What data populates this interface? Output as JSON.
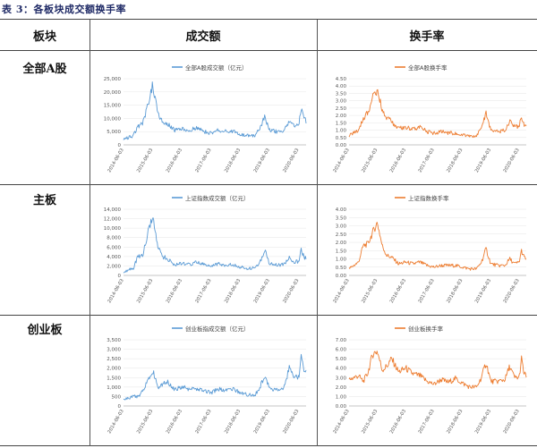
{
  "caption": "表 3：各板块成交额换手率",
  "headers": {
    "board": "板块",
    "turnover_amount": "成交额",
    "turnover_rate": "换手率"
  },
  "rows": [
    {
      "label": "全部A股",
      "amount_chart": {
        "type": "line",
        "legend": "全部A股成交额（亿元）",
        "color": "#5b9bd5",
        "yticks": [
          "25,000",
          "20,000",
          "15,000",
          "10,000",
          "5,000",
          "0"
        ],
        "ylim": [
          0,
          25000
        ],
        "xticks": [
          "2014-06-03",
          "2015-06-03",
          "2016-06-03",
          "2017-06-03",
          "2018-06-03",
          "2019-06-03",
          "2020-06-03"
        ],
        "x": [
          "2014-06",
          "2014-10",
          "2014-12",
          "2015-02",
          "2015-04",
          "2015-06",
          "2015-08",
          "2015-10",
          "2015-12",
          "2016-03",
          "2016-06",
          "2016-09",
          "2016-12",
          "2017-03",
          "2017-06",
          "2017-09",
          "2017-12",
          "2018-03",
          "2018-06",
          "2018-09",
          "2018-12",
          "2019-02",
          "2019-04",
          "2019-06",
          "2019-09",
          "2019-12",
          "2020-02",
          "2020-04",
          "2020-06",
          "2020-07",
          "2020-08",
          "2020-09"
        ],
        "values": [
          2000,
          3500,
          7000,
          8500,
          15000,
          23000,
          12000,
          9000,
          8000,
          5500,
          6000,
          5500,
          6500,
          5000,
          4500,
          5500,
          5000,
          5000,
          4000,
          3500,
          3500,
          6000,
          11000,
          5500,
          5000,
          5500,
          9000,
          7000,
          8000,
          14000,
          10000,
          9000
        ]
      },
      "rate_chart": {
        "type": "line",
        "legend": "全部A股换手率",
        "color": "#ed7d31",
        "yticks": [
          "4.50",
          "4.00",
          "3.50",
          "3.00",
          "2.50",
          "2.00",
          "1.50",
          "1.00",
          "0.50",
          "0.00"
        ],
        "ylim": [
          0,
          4.5
        ],
        "xticks": [
          "2014-06-03",
          "2015-06-03",
          "2016-06-03",
          "2017-06-03",
          "2018-06-03",
          "2019-06-03",
          "2020-06-03"
        ],
        "x": [
          "2014-06",
          "2014-10",
          "2014-12",
          "2015-02",
          "2015-04",
          "2015-06",
          "2015-08",
          "2015-10",
          "2015-12",
          "2016-03",
          "2016-06",
          "2016-09",
          "2016-12",
          "2017-03",
          "2017-06",
          "2017-09",
          "2017-12",
          "2018-03",
          "2018-06",
          "2018-09",
          "2018-12",
          "2019-02",
          "2019-04",
          "2019-06",
          "2019-09",
          "2019-12",
          "2020-02",
          "2020-04",
          "2020-06",
          "2020-07",
          "2020-08",
          "2020-09"
        ],
        "values": [
          0.6,
          1.0,
          1.8,
          2.2,
          3.2,
          3.8,
          2.4,
          1.8,
          1.6,
          1.1,
          1.2,
          1.1,
          1.2,
          0.9,
          0.8,
          0.9,
          0.8,
          0.8,
          0.7,
          0.6,
          0.6,
          1.1,
          2.2,
          1.0,
          0.9,
          1.0,
          1.6,
          1.2,
          1.3,
          1.9,
          1.4,
          1.3
        ]
      }
    },
    {
      "label": "主板",
      "amount_chart": {
        "type": "line",
        "legend": "上证指数成交额（亿元）",
        "color": "#5b9bd5",
        "yticks": [
          "14,000",
          "12,000",
          "10,000",
          "8,000",
          "6,000",
          "4,000",
          "2,000",
          "0"
        ],
        "ylim": [
          0,
          14000
        ],
        "xticks": [
          "2014-06-03",
          "2015-06-03",
          "2016-06-03",
          "2017-06-03",
          "2018-06-03",
          "2019-06-03",
          "2020-06-03"
        ],
        "x": [
          "2014-06",
          "2014-10",
          "2014-12",
          "2015-02",
          "2015-04",
          "2015-06",
          "2015-08",
          "2015-10",
          "2015-12",
          "2016-03",
          "2016-06",
          "2016-09",
          "2016-12",
          "2017-03",
          "2017-06",
          "2017-09",
          "2017-12",
          "2018-03",
          "2018-06",
          "2018-09",
          "2018-12",
          "2019-02",
          "2019-04",
          "2019-06",
          "2019-09",
          "2019-12",
          "2020-02",
          "2020-04",
          "2020-06",
          "2020-07",
          "2020-08",
          "2020-09"
        ],
        "values": [
          800,
          1500,
          4000,
          4500,
          9000,
          13000,
          6000,
          4000,
          3500,
          2200,
          2500,
          2300,
          2800,
          2300,
          2000,
          2500,
          2200,
          2200,
          1800,
          1500,
          1500,
          2800,
          5500,
          2500,
          2200,
          2300,
          3800,
          2800,
          3000,
          5500,
          4000,
          3500
        ]
      },
      "rate_chart": {
        "type": "line",
        "legend": "上证指数换手率",
        "color": "#ed7d31",
        "yticks": [
          "4.00",
          "3.50",
          "3.00",
          "2.50",
          "2.00",
          "1.50",
          "1.00",
          "0.50",
          "0.00"
        ],
        "ylim": [
          0,
          4.0
        ],
        "xticks": [
          "2014-06-03",
          "2015-06-03",
          "2016-06-03",
          "2017-06-03",
          "2018-06-03",
          "2019-06-03",
          "2020-06-03"
        ],
        "x": [
          "2014-06",
          "2014-10",
          "2014-12",
          "2015-02",
          "2015-04",
          "2015-06",
          "2015-08",
          "2015-10",
          "2015-12",
          "2016-03",
          "2016-06",
          "2016-09",
          "2016-12",
          "2017-03",
          "2017-06",
          "2017-09",
          "2017-12",
          "2018-03",
          "2018-06",
          "2018-09",
          "2018-12",
          "2019-02",
          "2019-04",
          "2019-06",
          "2019-09",
          "2019-12",
          "2020-02",
          "2020-04",
          "2020-06",
          "2020-07",
          "2020-08",
          "2020-09"
        ],
        "values": [
          0.4,
          0.8,
          1.8,
          1.9,
          2.6,
          3.2,
          1.8,
          1.2,
          1.1,
          0.7,
          0.8,
          0.7,
          0.8,
          0.6,
          0.5,
          0.6,
          0.6,
          0.6,
          0.5,
          0.4,
          0.4,
          0.8,
          1.6,
          0.7,
          0.6,
          0.6,
          1.0,
          0.7,
          0.8,
          1.5,
          1.1,
          1.0
        ]
      }
    },
    {
      "label": "创业板",
      "amount_chart": {
        "type": "line",
        "legend": "创业板指成交额（亿元）",
        "color": "#5b9bd5",
        "yticks": [
          "3,500",
          "3,000",
          "2,500",
          "2,000",
          "1,500",
          "1,000",
          "500",
          "0"
        ],
        "ylim": [
          0,
          3500
        ],
        "xticks": [
          "2014-06-03",
          "2015-06-03",
          "2016-06-03",
          "2017-06-03",
          "2018-06-03",
          "2019-06-03",
          "2020-06-03"
        ],
        "x": [
          "2014-06",
          "2014-10",
          "2014-12",
          "2015-02",
          "2015-04",
          "2015-06",
          "2015-08",
          "2015-10",
          "2015-12",
          "2016-03",
          "2016-06",
          "2016-09",
          "2016-12",
          "2017-03",
          "2017-06",
          "2017-09",
          "2017-12",
          "2018-03",
          "2018-06",
          "2018-09",
          "2018-12",
          "2019-02",
          "2019-04",
          "2019-06",
          "2019-09",
          "2019-12",
          "2020-02",
          "2020-04",
          "2020-06",
          "2020-07",
          "2020-08",
          "2020-09"
        ],
        "values": [
          300,
          500,
          500,
          800,
          1400,
          1900,
          1000,
          1100,
          1300,
          900,
          1000,
          900,
          900,
          800,
          700,
          900,
          800,
          900,
          700,
          600,
          600,
          1000,
          1600,
          900,
          900,
          1000,
          2000,
          1500,
          1500,
          2900,
          2000,
          1900
        ]
      },
      "rate_chart": {
        "type": "line",
        "legend": "创业板换手率",
        "color": "#ed7d31",
        "yticks": [
          "7.00",
          "6.00",
          "5.00",
          "4.00",
          "3.00",
          "2.00",
          "1.00",
          "0.00"
        ],
        "ylim": [
          0,
          7.0
        ],
        "xticks": [
          "2014-06-03",
          "2015-06-03",
          "2016-06-03",
          "2017-06-03",
          "2018-06-03",
          "2019-06-03",
          "2020-06-03"
        ],
        "x": [
          "2014-06",
          "2014-10",
          "2014-12",
          "2015-02",
          "2015-04",
          "2015-06",
          "2015-08",
          "2015-10",
          "2015-12",
          "2016-03",
          "2016-06",
          "2016-09",
          "2016-12",
          "2017-03",
          "2017-06",
          "2017-09",
          "2017-12",
          "2018-03",
          "2018-06",
          "2018-09",
          "2018-12",
          "2019-02",
          "2019-04",
          "2019-06",
          "2019-09",
          "2019-12",
          "2020-02",
          "2020-04",
          "2020-06",
          "2020-07",
          "2020-08",
          "2020-09"
        ],
        "values": [
          2.8,
          3.2,
          2.6,
          3.5,
          5.5,
          5.8,
          3.8,
          4.2,
          5.0,
          3.6,
          4.0,
          3.4,
          3.2,
          2.6,
          2.3,
          2.8,
          2.5,
          2.9,
          2.4,
          2.0,
          2.0,
          3.0,
          4.6,
          2.6,
          2.6,
          2.8,
          4.2,
          3.0,
          3.0,
          5.0,
          3.4,
          3.2
        ]
      }
    }
  ]
}
